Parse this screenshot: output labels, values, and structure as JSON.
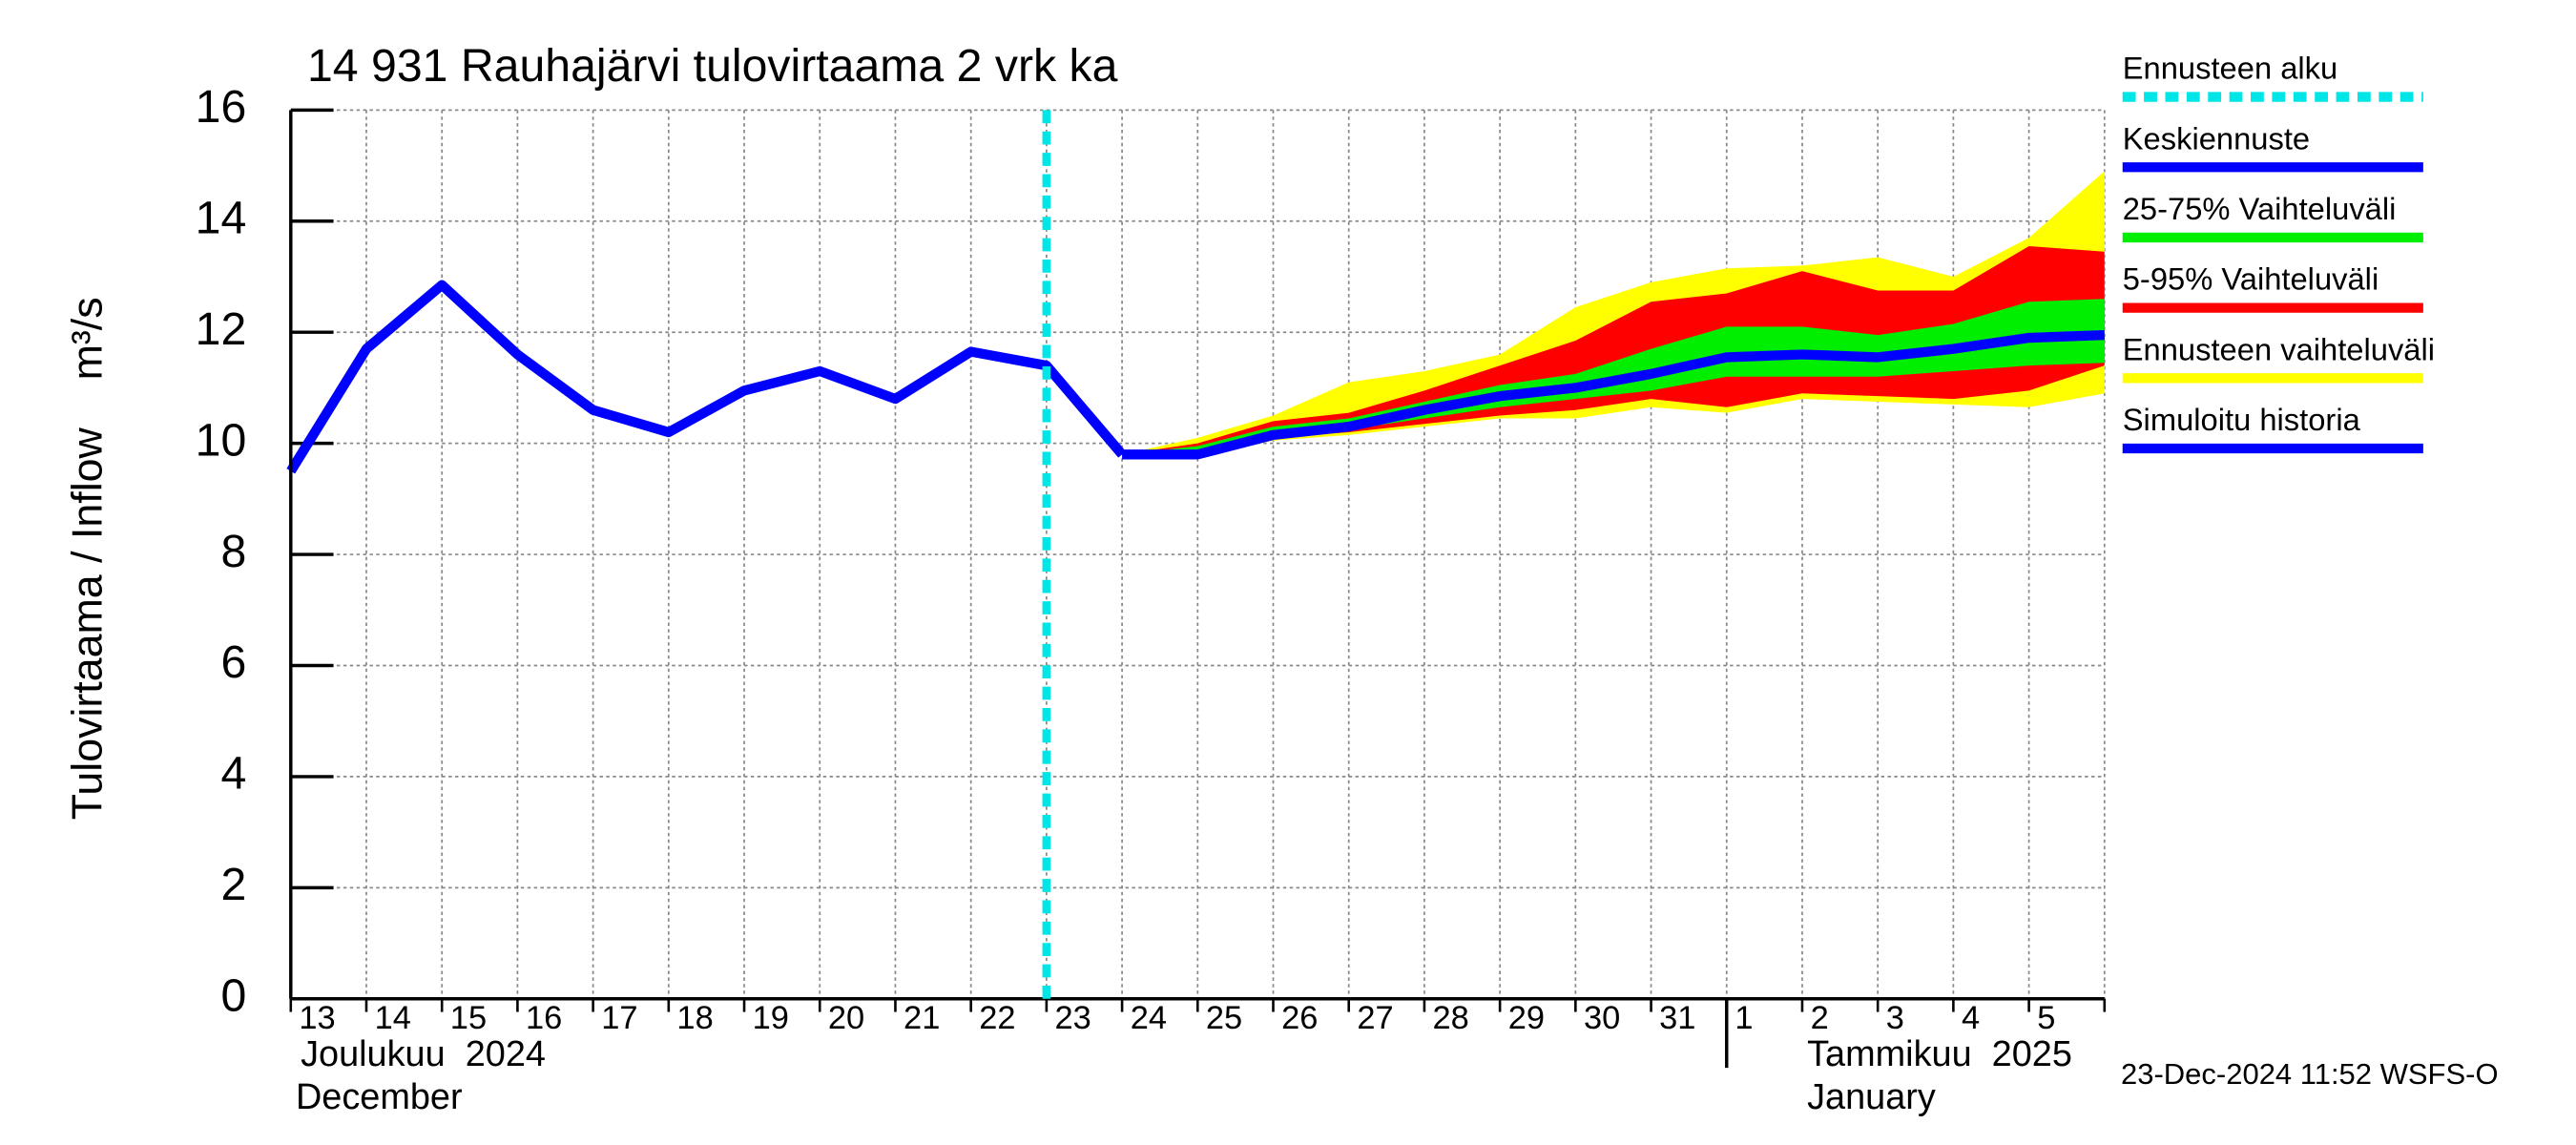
{
  "chart_data": {
    "type": "line",
    "title": "14 931 Rauhajärvi tulovirtaama 2 vrk ka",
    "ylabel": "Tulovirtaama / Inflow    m³/s",
    "categories": [
      "13",
      "14",
      "15",
      "16",
      "17",
      "18",
      "19",
      "20",
      "21",
      "22",
      "23",
      "24",
      "25",
      "26",
      "27",
      "28",
      "29",
      "30",
      "31",
      "1",
      "2",
      "3",
      "4",
      "5",
      null
    ],
    "month_labels": [
      "Joulukuu  2024",
      "December",
      "Tammikuu  2025",
      "January"
    ],
    "timestamp": "23-Dec-2024 11:52 WSFS-O",
    "ylim": [
      0,
      16
    ],
    "yticks": [
      0,
      2,
      4,
      6,
      8,
      10,
      12,
      14,
      16
    ],
    "grid": true,
    "forecast_start": {
      "name": "Ennusteen alku",
      "color": "#00e5e5",
      "index": 10
    },
    "series": [
      {
        "name": "Keskiennuste",
        "color": "#0000ff",
        "values": [
          null,
          null,
          null,
          null,
          null,
          null,
          null,
          null,
          null,
          null,
          null,
          9.8,
          9.8,
          10.15,
          10.3,
          10.6,
          10.85,
          11.0,
          11.25,
          11.55,
          11.6,
          11.55,
          11.7,
          11.9,
          11.95
        ]
      },
      {
        "name": "25-75% Vaihteluväli",
        "color": "#00ee00",
        "lower": [
          null,
          null,
          null,
          null,
          null,
          null,
          null,
          null,
          null,
          null,
          null,
          9.8,
          9.85,
          10.1,
          10.25,
          10.45,
          10.65,
          10.8,
          10.95,
          11.2,
          11.2,
          11.2,
          11.3,
          11.4,
          11.45
        ],
        "upper": [
          null,
          null,
          null,
          null,
          null,
          null,
          null,
          null,
          null,
          null,
          null,
          9.8,
          9.95,
          10.3,
          10.45,
          10.75,
          11.05,
          11.25,
          11.7,
          12.1,
          12.1,
          11.95,
          12.15,
          12.55,
          12.6
        ]
      },
      {
        "name": "5-95% Vaihteluväli",
        "color": "#ff0000",
        "lower": [
          null,
          null,
          null,
          null,
          null,
          null,
          null,
          null,
          null,
          null,
          null,
          9.8,
          9.8,
          10.1,
          10.2,
          10.35,
          10.5,
          10.6,
          10.8,
          10.65,
          10.9,
          10.85,
          10.8,
          10.95,
          11.4
        ],
        "upper": [
          null,
          null,
          null,
          null,
          null,
          null,
          null,
          null,
          null,
          null,
          null,
          9.8,
          10.0,
          10.4,
          10.55,
          10.95,
          11.4,
          11.85,
          12.55,
          12.7,
          13.1,
          12.75,
          12.75,
          13.55,
          13.45
        ]
      },
      {
        "name": "Ennusteen vaihteluväli",
        "color": "#ffff00",
        "lower": [
          null,
          null,
          null,
          null,
          null,
          null,
          null,
          null,
          null,
          null,
          null,
          9.8,
          9.75,
          10.05,
          10.15,
          10.3,
          10.45,
          10.45,
          10.65,
          10.55,
          10.8,
          10.75,
          10.7,
          10.65,
          10.9
        ],
        "upper": [
          null,
          null,
          null,
          null,
          null,
          null,
          null,
          null,
          null,
          null,
          null,
          9.8,
          10.1,
          10.5,
          11.1,
          11.3,
          11.6,
          12.45,
          12.9,
          13.15,
          13.2,
          13.35,
          13.0,
          13.7,
          14.9
        ]
      },
      {
        "name": "Simuloitu historia",
        "color": "#0000ff",
        "values": [
          9.5,
          11.7,
          12.85,
          11.6,
          10.6,
          10.2,
          10.95,
          11.3,
          10.8,
          11.65,
          11.4,
          9.8,
          null,
          null,
          null,
          null,
          null,
          null,
          null,
          null,
          null,
          null,
          null,
          null,
          null
        ]
      }
    ]
  }
}
